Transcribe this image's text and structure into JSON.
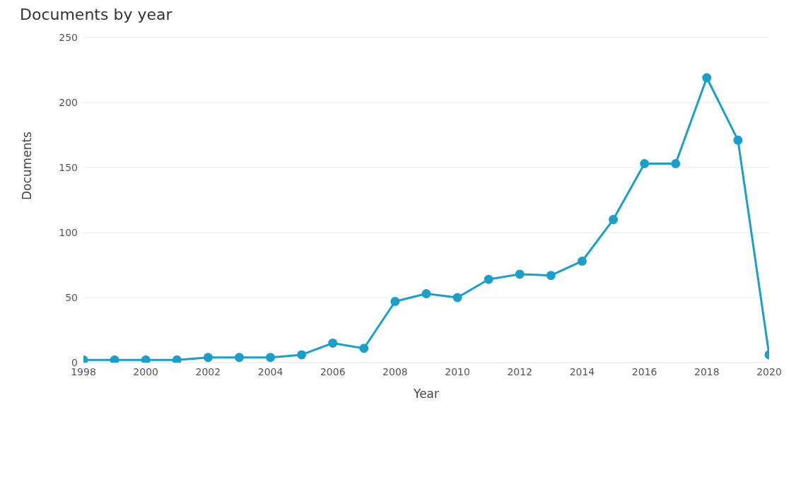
{
  "chart_data": {
    "type": "line",
    "title": "Documents by year",
    "xlabel": "Year",
    "ylabel": "Documents",
    "x": [
      1998,
      1999,
      2000,
      2001,
      2002,
      2003,
      2004,
      2005,
      2006,
      2007,
      2008,
      2009,
      2010,
      2011,
      2012,
      2013,
      2014,
      2015,
      2016,
      2017,
      2018,
      2019,
      2020
    ],
    "series": [
      {
        "color": "#1a9fc9",
        "values": [
          2,
          2,
          2,
          2,
          4,
          4,
          4,
          6,
          15,
          11,
          47,
          53,
          50,
          64,
          68,
          67,
          78,
          110,
          153,
          153,
          219,
          171,
          6
        ]
      }
    ],
    "xlim": [
      1998,
      2020
    ],
    "xticks": [
      1998,
      2000,
      2002,
      2004,
      2006,
      2008,
      2010,
      2012,
      2014,
      2016,
      2018,
      2020
    ],
    "ylim": [
      0,
      250
    ],
    "yticks": [
      0,
      50,
      100,
      150,
      200,
      250
    ],
    "grid": "y",
    "marker": "circle",
    "line_style": "solid",
    "legend": false
  }
}
